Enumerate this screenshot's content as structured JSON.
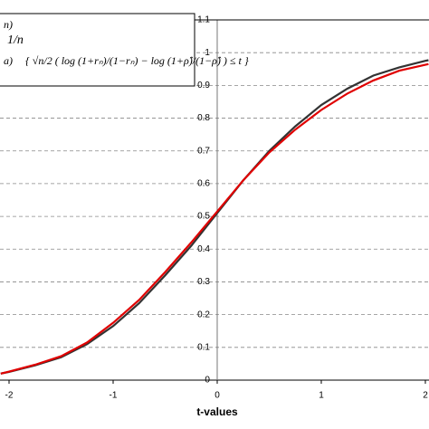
{
  "chart_data": {
    "type": "line",
    "x_label": "t-values",
    "x": [
      -2.08,
      -2,
      -1.75,
      -1.5,
      -1.25,
      -1,
      -0.75,
      -0.5,
      -0.25,
      0,
      0.25,
      0.5,
      0.75,
      1,
      1.25,
      1.5,
      1.75,
      2,
      2.03
    ],
    "series": [
      {
        "color": "#333333",
        "values": [
          0.02,
          0.025,
          0.045,
          0.07,
          0.11,
          0.165,
          0.235,
          0.32,
          0.41,
          0.51,
          0.61,
          0.7,
          0.775,
          0.84,
          0.89,
          0.93,
          0.955,
          0.975,
          0.977
        ]
      },
      {
        "color": "#e00000",
        "values": [
          0.02,
          0.026,
          0.047,
          0.073,
          0.115,
          0.175,
          0.245,
          0.33,
          0.42,
          0.515,
          0.61,
          0.695,
          0.765,
          0.825,
          0.875,
          0.915,
          0.945,
          0.963,
          0.965
        ]
      }
    ],
    "annotations": [
      "n)",
      "1/n",
      "a)",
      "{ √n/2 ( log (1+rₙ)/(1−rₙ) − log (1+ρ̂)/(1−ρ̂) ) ≤ t }"
    ],
    "xlim": [
      -2.087,
      2.035
    ],
    "xticks": [
      -2,
      -1,
      0,
      1,
      2
    ],
    "ylim": [
      0,
      1.1
    ],
    "yticks": [
      0,
      0.1,
      0.2,
      0.3,
      0.4,
      0.5,
      0.6,
      0.7,
      0.8,
      0.9,
      1,
      1.1
    ],
    "grid": true
  }
}
